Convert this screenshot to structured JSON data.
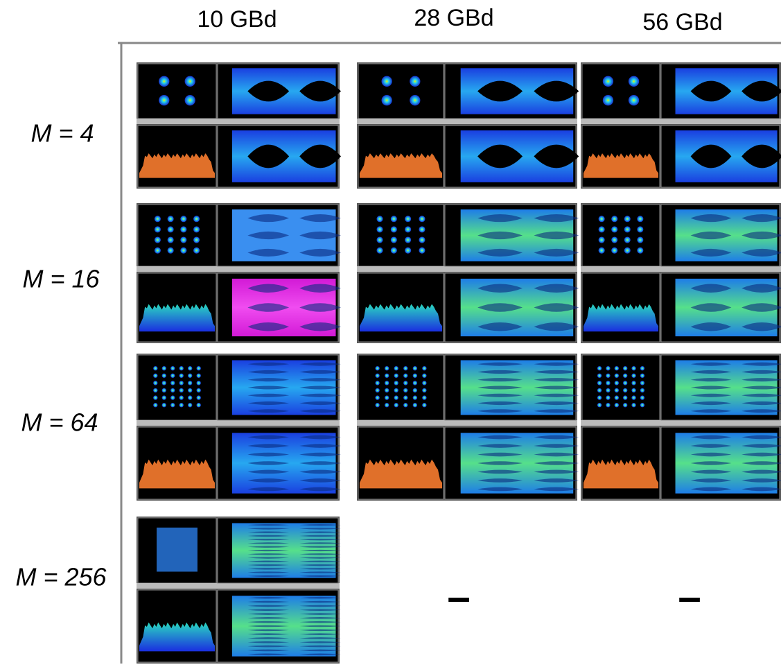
{
  "header": {
    "columns": [
      "10 GBd",
      "28 GBd",
      "56 GBd"
    ]
  },
  "rows": [
    {
      "label": "M = 4"
    },
    {
      "label": "M = 16"
    },
    {
      "label": "M = 64"
    },
    {
      "label": "M = 256",
      "empty": [
        "–",
        "–"
      ]
    }
  ]
}
